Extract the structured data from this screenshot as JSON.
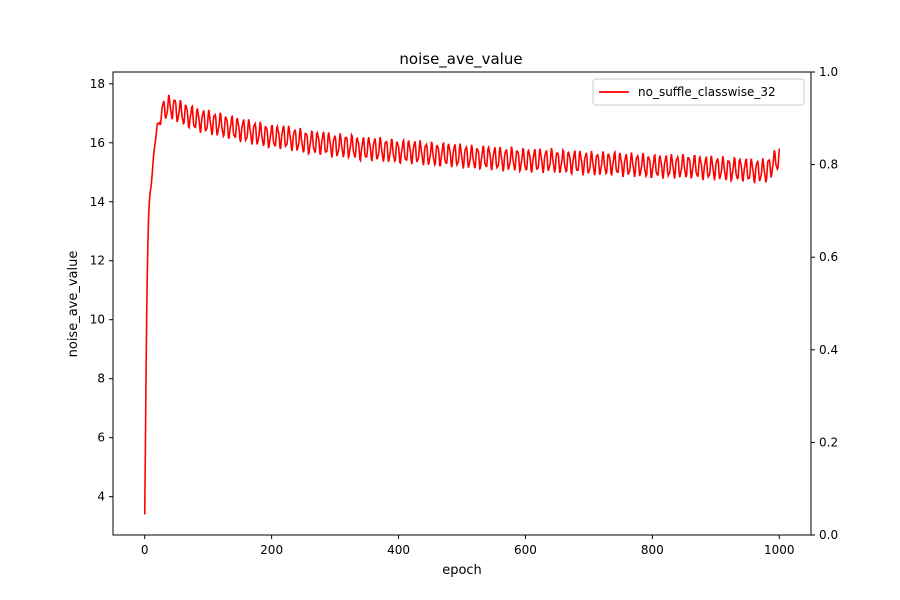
{
  "chart_data": {
    "type": "line",
    "title": "noise_ave_value",
    "xlabel": "epoch",
    "ylabel": "noise_ave_value",
    "xlim": [
      -50,
      1050
    ],
    "ylim": [
      2.7,
      18.4
    ],
    "y2lim": [
      0.0,
      1.0
    ],
    "xticks": [
      0,
      200,
      400,
      600,
      800,
      1000
    ],
    "yticks": [
      4,
      6,
      8,
      10,
      12,
      14,
      16,
      18
    ],
    "y2ticks": [
      0.0,
      0.2,
      0.4,
      0.6,
      0.8,
      1.0
    ],
    "y2tick_labels": [
      "0.0",
      "0.2",
      "0.4",
      "0.6",
      "0.8",
      "1.0"
    ],
    "grid": false,
    "legend_position": "top-right",
    "series": [
      {
        "name": "no_suffle_classwise_32",
        "color": "#ff0000",
        "x": [
          0,
          1,
          2,
          3,
          4,
          5,
          6,
          7,
          8,
          9,
          10,
          12,
          14,
          16,
          18,
          20,
          22,
          24,
          26,
          28,
          30,
          35,
          40,
          45,
          50,
          60,
          70,
          80,
          100,
          120,
          140,
          160,
          180,
          200,
          220,
          240,
          260,
          280,
          300,
          320,
          340,
          360,
          380,
          400,
          420,
          440,
          460,
          480,
          500,
          520,
          540,
          560,
          580,
          600,
          620,
          640,
          660,
          680,
          700,
          720,
          740,
          760,
          780,
          800,
          820,
          840,
          860,
          880,
          900,
          920,
          940,
          960,
          980,
          1000
        ],
        "values": [
          3.4,
          5.5,
          8.0,
          10.0,
          11.5,
          12.6,
          13.4,
          13.9,
          14.2,
          14.4,
          14.5,
          15.0,
          15.6,
          16.0,
          16.3,
          16.5,
          16.6,
          16.8,
          17.0,
          17.1,
          17.1,
          17.2,
          17.2,
          17.2,
          17.1,
          17.0,
          16.9,
          16.8,
          16.7,
          16.6,
          16.5,
          16.4,
          16.3,
          16.2,
          16.2,
          16.1,
          16.0,
          16.0,
          15.9,
          15.9,
          15.8,
          15.8,
          15.75,
          15.7,
          15.7,
          15.65,
          15.6,
          15.6,
          15.55,
          15.5,
          15.5,
          15.45,
          15.45,
          15.4,
          15.4,
          15.4,
          15.35,
          15.35,
          15.3,
          15.3,
          15.3,
          15.25,
          15.25,
          15.2,
          15.2,
          15.2,
          15.2,
          15.15,
          15.15,
          15.1,
          15.1,
          15.05,
          15.05,
          15.5
        ],
        "oscillation": {
          "period_epochs": 9,
          "amplitude": 0.35,
          "start_epoch": 12
        }
      }
    ]
  }
}
